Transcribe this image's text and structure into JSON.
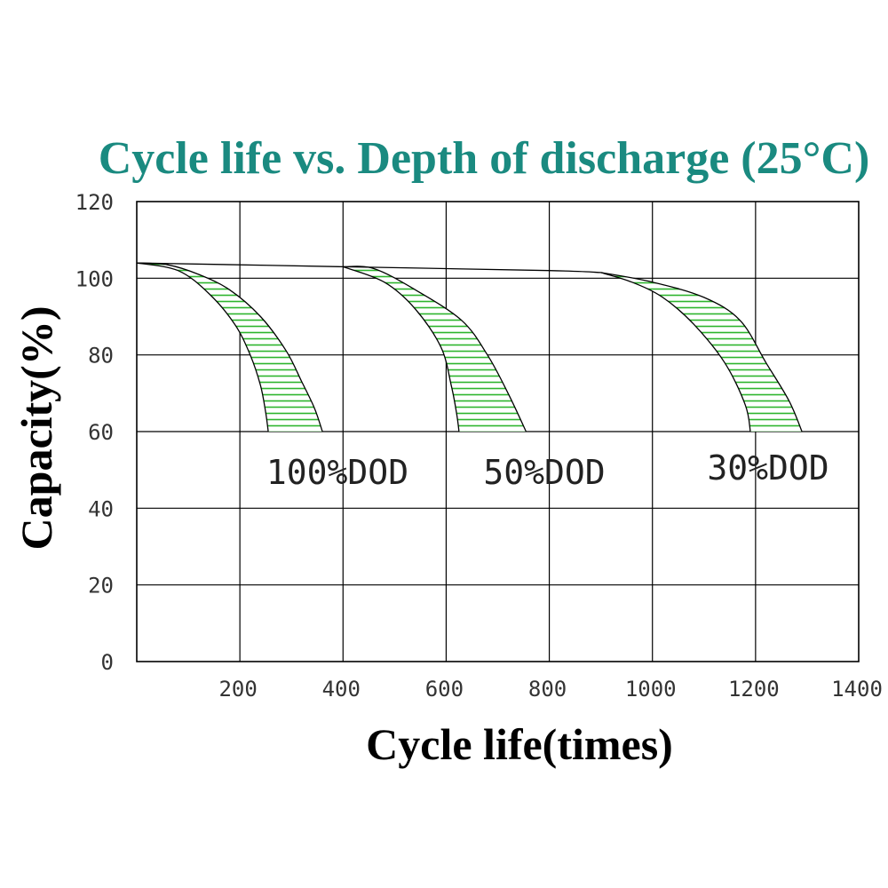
{
  "chart_data": {
    "type": "area",
    "title": "Cycle life vs. Depth of discharge (25°C)",
    "xlabel": "Cycle life(times)",
    "ylabel": "Capacity(%)",
    "xlim": [
      0,
      1400
    ],
    "ylim": [
      0,
      120
    ],
    "x_ticks": [
      200,
      400,
      600,
      800,
      1000,
      1200,
      1400
    ],
    "y_ticks": [
      0,
      20,
      40,
      60,
      80,
      100,
      120
    ],
    "grid": true,
    "colors": {
      "title": "#1a8a80",
      "fill": "#2db52d",
      "line": "#000000",
      "grid": "#000000"
    },
    "common_top_line": [
      [
        0,
        104
      ],
      [
        400,
        103
      ],
      [
        800,
        102
      ],
      [
        900,
        101.5
      ]
    ],
    "series": [
      {
        "name": "100%DOD",
        "upper_boundary": [
          [
            0,
            104
          ],
          [
            60,
            103.5
          ],
          [
            120,
            101
          ],
          [
            180,
            97
          ],
          [
            240,
            90
          ],
          [
            290,
            81
          ],
          [
            320,
            73
          ],
          [
            345,
            66
          ],
          [
            360,
            60
          ]
        ],
        "lower_boundary": [
          [
            0,
            104
          ],
          [
            80,
            102
          ],
          [
            140,
            96
          ],
          [
            190,
            88
          ],
          [
            220,
            80
          ],
          [
            240,
            72
          ],
          [
            250,
            65
          ],
          [
            255,
            60
          ]
        ]
      },
      {
        "name": "50%DOD",
        "upper_boundary": [
          [
            400,
            103
          ],
          [
            460,
            102.5
          ],
          [
            540,
            97
          ],
          [
            630,
            89
          ],
          [
            680,
            80
          ],
          [
            720,
            70
          ],
          [
            755,
            60
          ]
        ],
        "lower_boundary": [
          [
            400,
            103
          ],
          [
            480,
            99
          ],
          [
            540,
            92
          ],
          [
            590,
            82
          ],
          [
            610,
            72
          ],
          [
            620,
            65
          ],
          [
            625,
            60
          ]
        ]
      },
      {
        "name": "30%DOD",
        "upper_boundary": [
          [
            900,
            101.5
          ],
          [
            1000,
            99
          ],
          [
            1100,
            95
          ],
          [
            1170,
            89
          ],
          [
            1220,
            78
          ],
          [
            1265,
            68
          ],
          [
            1290,
            60
          ]
        ],
        "lower_boundary": [
          [
            900,
            101.5
          ],
          [
            960,
            99
          ],
          [
            1020,
            95
          ],
          [
            1080,
            88
          ],
          [
            1140,
            78
          ],
          [
            1180,
            67
          ],
          [
            1190,
            60
          ]
        ]
      }
    ]
  }
}
